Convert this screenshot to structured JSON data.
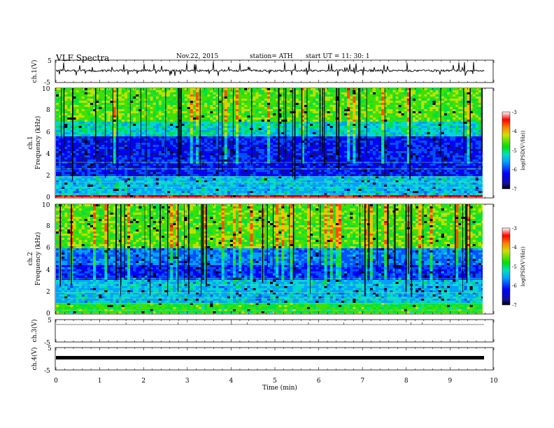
{
  "header": {
    "title": "VLF  Spectra",
    "date": "Nov.22, 2015",
    "station": "station= ATH",
    "start": "start  UT =    11: 30: 1"
  },
  "chart_data": [
    {
      "type": "line",
      "name": "ch1-waveform",
      "ylabel": "ch.1(V)",
      "ylim": [
        -5,
        5
      ],
      "yticks": [
        "5",
        "-5"
      ],
      "baseline": 0.2,
      "xlim": [
        0,
        10
      ]
    },
    {
      "type": "heatmap",
      "name": "ch1-spectrogram",
      "ylabel": "ch.1\nFrequency  (kHz)",
      "ylabel_lines": [
        "ch.1",
        "Frequency  (kHz)"
      ],
      "ylim": [
        0,
        10
      ],
      "yticks": [
        "0",
        "2",
        "4",
        "6",
        "8",
        "10"
      ],
      "xlim": [
        0,
        9.8
      ],
      "colorbar": {
        "label": "log(PSD(V²/Hz))",
        "range": [
          -7,
          -3
        ],
        "ticks": [
          "-3",
          "-4",
          "-5",
          "-6",
          "-7"
        ]
      }
    },
    {
      "type": "heatmap",
      "name": "ch2-spectrogram",
      "ylabel": "ch.2\nFrequency  (kHz)",
      "ylabel_lines": [
        "ch.2",
        "Frequency  (kHz)"
      ],
      "ylim": [
        0,
        10
      ],
      "yticks": [
        "0",
        "2",
        "4",
        "6",
        "8",
        "10"
      ],
      "xlim": [
        0,
        9.8
      ],
      "colorbar": {
        "label": "log(PSD(V²/Hz))",
        "range": [
          -7,
          -3
        ],
        "ticks": [
          "-3",
          "-4",
          "-5",
          "-6",
          "-7"
        ]
      }
    },
    {
      "type": "line",
      "name": "ch3-waveform",
      "ylabel": "ch.3(V)",
      "ylim": [
        -5,
        5
      ],
      "yticks": [
        "5",
        "-5"
      ],
      "baseline": 0.0
    },
    {
      "type": "line",
      "name": "ch4-waveform",
      "ylabel": "ch.4(V)",
      "ylim": [
        -5,
        5
      ],
      "yticks": [
        "5",
        "-5"
      ],
      "baseline": 0.0
    }
  ],
  "xaxis": {
    "label": "Time  (min)",
    "xlim": [
      0,
      10
    ],
    "ticks": [
      "0",
      "1",
      "2",
      "3",
      "4",
      "5",
      "6",
      "7",
      "8",
      "9",
      "10"
    ]
  }
}
